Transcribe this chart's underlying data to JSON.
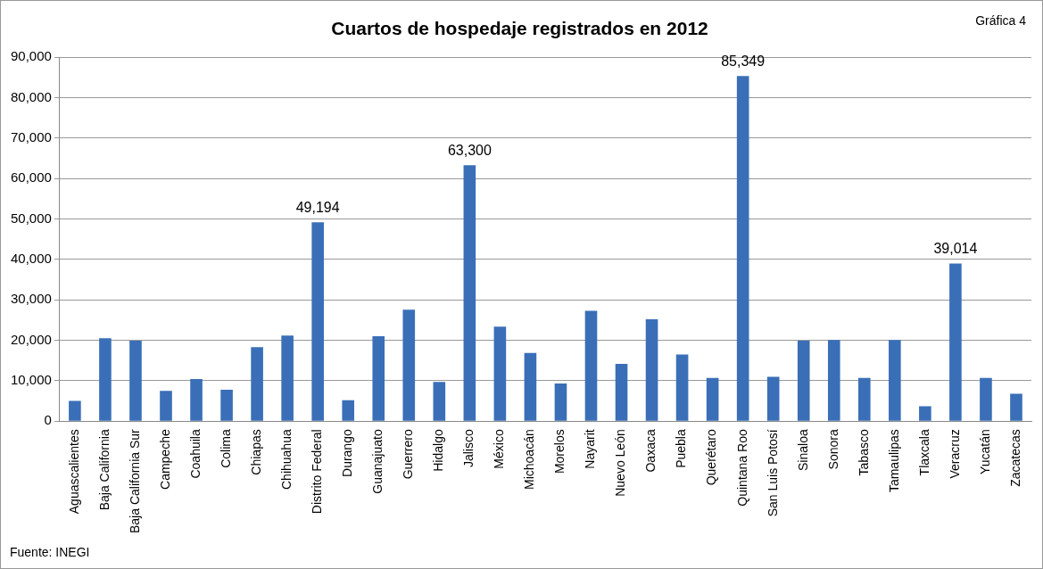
{
  "chart_data": {
    "type": "bar",
    "title": "Cuartos de hospedaje registrados en 2012",
    "categories": [
      "Aguascalientes",
      "Baja California",
      "Baja California Sur",
      "Campeche",
      "Coahuila",
      "Colima",
      "Chiapas",
      "Chihuahua",
      "Distrito Federal",
      "Durango",
      "Guanajuato",
      "Guerrero",
      "Hidalgo",
      "Jalisco",
      "México",
      "Michoacán",
      "Morelos",
      "Nayarit",
      "Nuevo León",
      "Oaxaca",
      "Puebla",
      "Querétaro",
      "Quintana Roo",
      "San Luis Potosí",
      "Sinaloa",
      "Sonora",
      "Tabasco",
      "Tamaulipas",
      "Tlaxcala",
      "Veracruz",
      "Yucatán",
      "Zacatecas"
    ],
    "values": [
      5000,
      20500,
      19900,
      7500,
      10400,
      7800,
      18300,
      21200,
      49194,
      5200,
      21000,
      27600,
      9700,
      63300,
      23400,
      16900,
      9300,
      27300,
      14200,
      25200,
      16500,
      10700,
      85349,
      11000,
      19900,
      20100,
      10700,
      20100,
      3700,
      39014,
      10700,
      6800
    ],
    "value_labels": [
      null,
      null,
      null,
      null,
      null,
      null,
      null,
      null,
      "49,194",
      null,
      null,
      null,
      null,
      "63,300",
      null,
      null,
      null,
      null,
      null,
      null,
      null,
      null,
      "85,349",
      null,
      null,
      null,
      null,
      null,
      null,
      "39,014",
      null,
      null
    ],
    "color": "#3a6fb8",
    "ylim": [
      0,
      90000
    ],
    "yticks": [
      {
        "value": 0,
        "label": "0"
      },
      {
        "value": 10000,
        "label": "10,000"
      },
      {
        "value": 20000,
        "label": "20,000"
      },
      {
        "value": 30000,
        "label": "30,000"
      },
      {
        "value": 40000,
        "label": "40,000"
      },
      {
        "value": 50000,
        "label": "50,000"
      },
      {
        "value": 60000,
        "label": "60,000"
      },
      {
        "value": 70000,
        "label": "70,000"
      },
      {
        "value": 80000,
        "label": "80,000"
      },
      {
        "value": 90000,
        "label": "90,000"
      }
    ],
    "grid": "y",
    "annotations": [
      "Gráfica 4",
      "Fuente: INEGI"
    ]
  }
}
